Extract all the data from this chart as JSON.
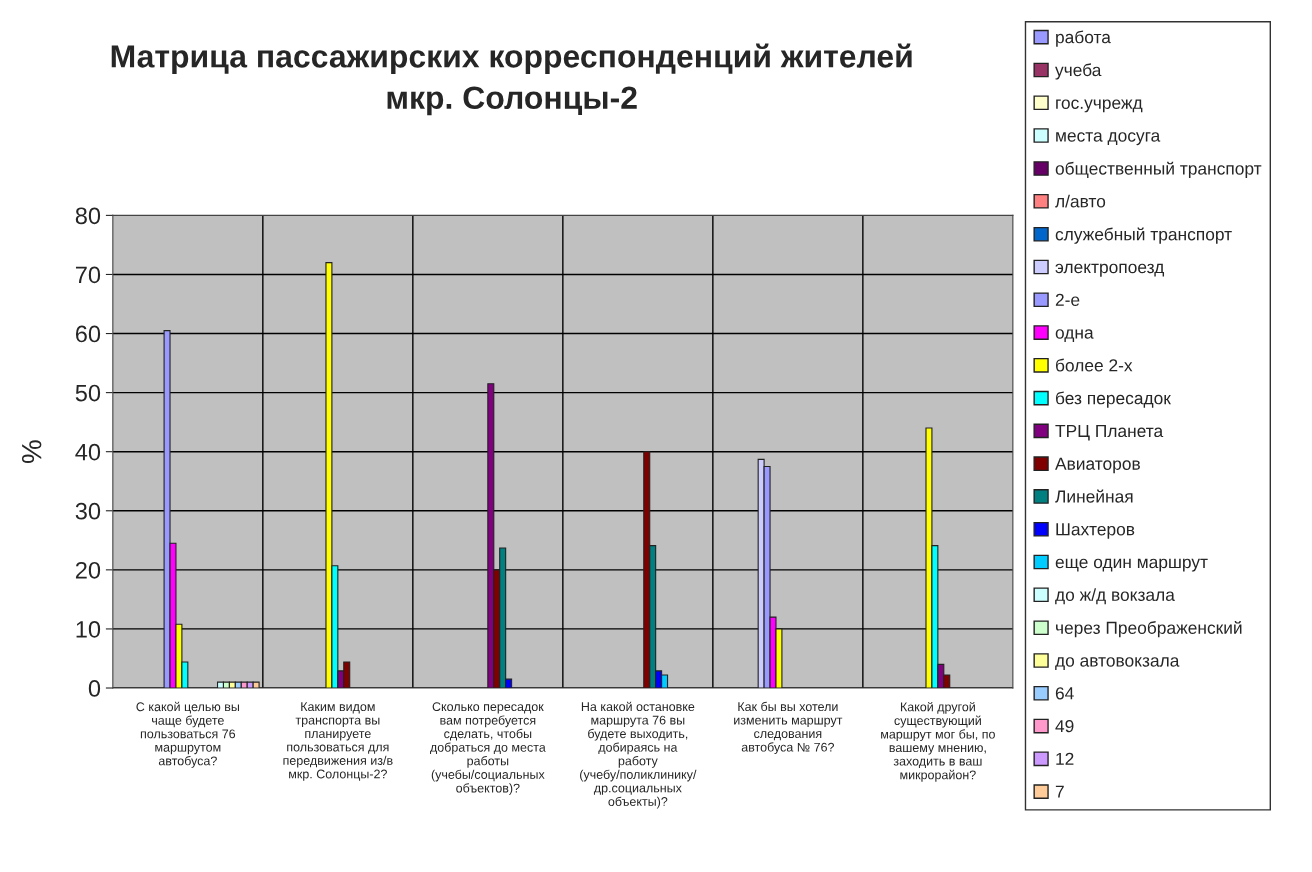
{
  "chart_data": {
    "type": "bar",
    "title": "Матрица пассажирских корреспонденций жителей\nмкр. Солонцы-2",
    "ylabel": "%",
    "categories": [
      "С какой целью вы\nчаще будете\nпользоваться 76\nмаршрутом\nавтобуса?",
      "Каким видом\nтранспорта вы\nпланируете\nпользоваться для\nпередвижения из/в\nмкр. Солонцы-2?",
      "Сколько пересадок\nвам потребуется\nсделать, чтобы\nдобраться до места\nработы\n(учебы/социальных\nобъектов)?",
      "На какой остановке\nмаршрута 76 вы\nбудете выходить,\nдобираясь на\nработу\n(учебу/поликлинику/\nдр.социальных\nобъекты)?",
      "Как бы вы хотели\nизменить маршрут\nследования\nавтобуса № 76?",
      "Какой другой\nсуществующий\nмаршрут мог бы, по\nвашему мнению,\nзаходить в ваш\nмикрорайон?"
    ],
    "ylim": [
      0,
      80
    ],
    "yticks": [
      0,
      10,
      20,
      30,
      40,
      50,
      60,
      70,
      80
    ],
    "grid": true,
    "legend": "right",
    "series": [
      {
        "name": "работа",
        "color": "#9999ff",
        "values": [
          null,
          null,
          null,
          null,
          null,
          null
        ]
      },
      {
        "name": "учеба",
        "color": "#993366",
        "values": [
          null,
          null,
          null,
          null,
          null,
          null
        ]
      },
      {
        "name": "гос.учрежд",
        "color": "#ffffcc",
        "values": [
          null,
          null,
          null,
          null,
          null,
          null
        ]
      },
      {
        "name": "места досуга",
        "color": "#ccffff",
        "values": [
          null,
          null,
          null,
          null,
          null,
          null
        ]
      },
      {
        "name": "общественный транспорт",
        "color": "#660066",
        "values": [
          null,
          null,
          null,
          null,
          null,
          null
        ]
      },
      {
        "name": "л/авто",
        "color": "#ff8080",
        "values": [
          null,
          null,
          null,
          null,
          null,
          null
        ]
      },
      {
        "name": "служебный транспорт",
        "color": "#0066cc",
        "values": [
          null,
          null,
          null,
          null,
          null,
          null
        ]
      },
      {
        "name": "электропоезд",
        "color": "#ccccff",
        "values": [
          null,
          null,
          null,
          null,
          38.7,
          null
        ]
      },
      {
        "name": "2-е",
        "color": "#9999ff",
        "values": [
          60.5,
          null,
          null,
          null,
          37.5,
          null
        ]
      },
      {
        "name": "одна",
        "color": "#ff00ff",
        "values": [
          24.5,
          null,
          null,
          null,
          12,
          null
        ]
      },
      {
        "name": "более 2-х",
        "color": "#ffff00",
        "values": [
          10.8,
          72,
          null,
          null,
          10,
          44
        ]
      },
      {
        "name": "без пересадок",
        "color": "#00ffff",
        "values": [
          4.4,
          20.7,
          null,
          null,
          null,
          24.1
        ]
      },
      {
        "name": "ТРЦ Планета",
        "color": "#800080",
        "values": [
          null,
          2.9,
          51.5,
          null,
          null,
          4
        ]
      },
      {
        "name": "Авиаторов",
        "color": "#800000",
        "values": [
          null,
          4.4,
          20,
          40,
          null,
          2.2
        ]
      },
      {
        "name": "Линейная",
        "color": "#008080",
        "values": [
          null,
          null,
          23.7,
          24.1,
          null,
          null
        ]
      },
      {
        "name": "Шахтеров",
        "color": "#0000ff",
        "values": [
          null,
          null,
          1.5,
          2.9,
          null,
          null
        ]
      },
      {
        "name": "еще один маршрут",
        "color": "#00ccff",
        "values": [
          null,
          null,
          null,
          2.2,
          null,
          null
        ]
      },
      {
        "name": "до ж/д вокзала",
        "color": "#ccffff",
        "values": [
          1,
          null,
          null,
          null,
          null,
          null
        ]
      },
      {
        "name": "через Преображенский",
        "color": "#ccffcc",
        "values": [
          1,
          null,
          null,
          null,
          null,
          null
        ]
      },
      {
        "name": "до автовокзала",
        "color": "#ffff99",
        "values": [
          1,
          null,
          null,
          null,
          null,
          null
        ]
      },
      {
        "name": "64",
        "color": "#99ccff",
        "values": [
          1,
          null,
          null,
          null,
          null,
          null
        ]
      },
      {
        "name": "49",
        "color": "#ff99cc",
        "values": [
          1,
          null,
          null,
          null,
          null,
          null
        ]
      },
      {
        "name": "12",
        "color": "#cc99ff",
        "values": [
          1,
          null,
          null,
          null,
          null,
          null
        ]
      },
      {
        "name": "7",
        "color": "#ffcc99",
        "values": [
          1,
          null,
          null,
          null,
          null,
          null
        ]
      }
    ]
  }
}
